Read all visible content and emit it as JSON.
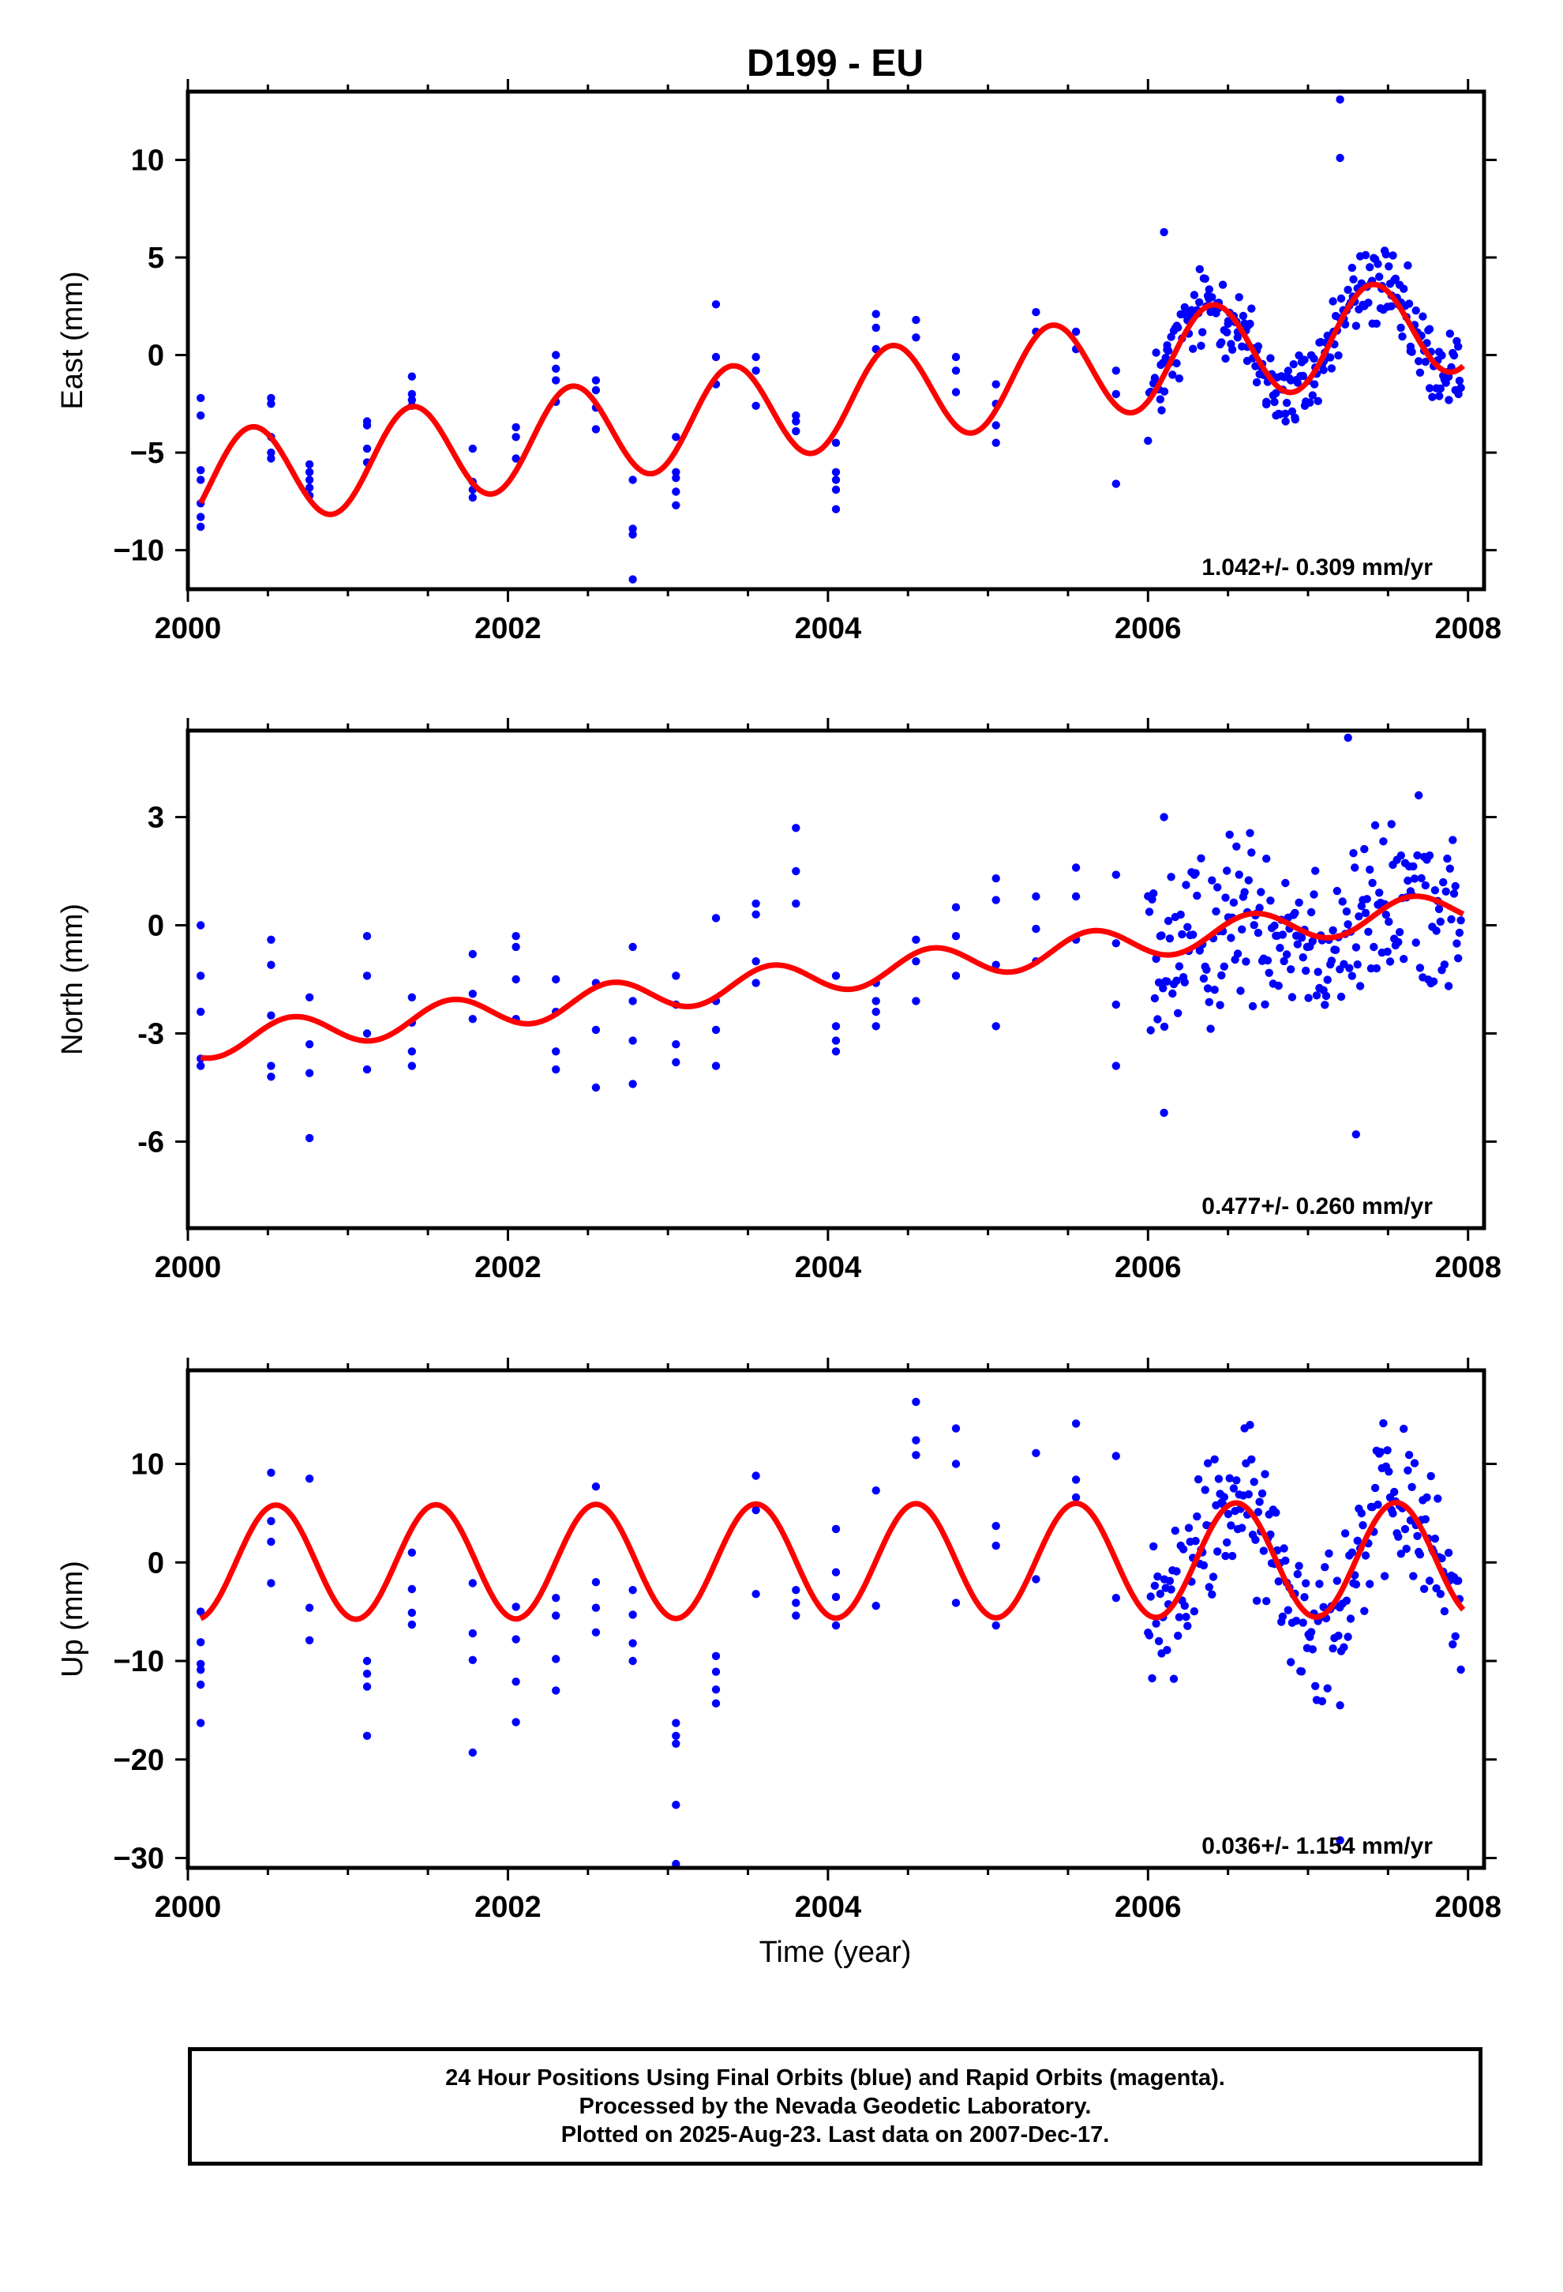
{
  "title": "D199 - EU",
  "xlabel": "Time (year)",
  "x_ticks": [
    2000,
    2002,
    2004,
    2006,
    2008
  ],
  "footer": {
    "line1": "24 Hour Positions Using Final Orbits (blue) and Rapid Orbits (magenta).",
    "line2": "Processed by the Nevada Geodetic Laboratory.",
    "line3": "Plotted on 2025-Aug-23. Last data on 2007-Dec-17."
  },
  "colors": {
    "points": "#0000ff",
    "model": "#ff0000",
    "frame": "#000000"
  },
  "chart_data": [
    {
      "type": "scatter",
      "title": "D199 - EU",
      "ylabel": "East (mm)",
      "xlabel": "",
      "xlim": [
        2000,
        2008.1
      ],
      "ylim": [
        -12,
        13.5
      ],
      "y_ticks": [
        -10,
        -5,
        0,
        5,
        10
      ],
      "y_tick_labels": [
        "−10",
        "−5",
        "0",
        "5",
        "10"
      ],
      "rate_text": "1.042+/- 0.309 mm/yr",
      "trend": {
        "slope": 1.042,
        "intercept_at_2000": -6.6
      },
      "seasonal": {
        "type": "annual",
        "amplitude": 2.5,
        "phase_year": 0.4
      },
      "grid": false,
      "series": [
        {
          "name": "points",
          "x": [
            2000.08,
            2000.08,
            2000.08,
            2000.08,
            2000.08,
            2000.08,
            2000.08,
            2000.52,
            2000.52,
            2000.52,
            2000.52,
            2000.52,
            2000.76,
            2000.76,
            2000.76,
            2000.76,
            2000.76,
            2001.12,
            2001.12,
            2001.12,
            2001.12,
            2001.4,
            2001.4,
            2001.4,
            2001.4,
            2001.78,
            2001.78,
            2001.78,
            2001.78,
            2002.05,
            2002.05,
            2002.05,
            2002.3,
            2002.3,
            2002.3,
            2002.3,
            2002.55,
            2002.55,
            2002.55,
            2002.55,
            2002.78,
            2002.78,
            2002.78,
            2002.78,
            2003.05,
            2003.05,
            2003.05,
            2003.05,
            2003.05,
            2003.3,
            2003.3,
            2003.3,
            2003.55,
            2003.55,
            2003.55,
            2003.8,
            2003.8,
            2003.8,
            2004.05,
            2004.05,
            2004.05,
            2004.05,
            2004.05,
            2004.3,
            2004.3,
            2004.3,
            2004.55,
            2004.55,
            2004.8,
            2004.8,
            2004.8,
            2005.05,
            2005.05,
            2005.05,
            2005.05,
            2005.3,
            2005.3,
            2005.55,
            2005.55,
            2005.8,
            2005.8,
            2005.8,
            2006.08,
            2006.12,
            2006.18,
            2006.25,
            2006.32,
            2006.38,
            2006.44,
            2006.5,
            2006.56,
            2006.62,
            2006.68,
            2006.74,
            2006.8,
            2006.86,
            2006.92,
            2006.98,
            2007.04,
            2007.1,
            2007.16,
            2007.22,
            2007.28,
            2007.34,
            2007.4,
            2007.46,
            2007.52,
            2007.58,
            2007.64,
            2007.7,
            2007.76,
            2007.82,
            2007.88,
            2007.94,
            2007.2,
            2007.2,
            2006.1
          ],
          "y": [
            -2.2,
            -3.1,
            -5.9,
            -6.4,
            -7.6,
            -8.3,
            -8.8,
            -2.2,
            -2.5,
            -4.2,
            -5.0,
            -5.3,
            -5.6,
            -6.0,
            -6.4,
            -6.8,
            -7.2,
            -3.4,
            -3.6,
            -4.8,
            -5.5,
            -1.1,
            -2.0,
            -2.3,
            -2.6,
            -4.8,
            -6.5,
            -6.9,
            -7.3,
            -3.7,
            -4.2,
            -5.3,
            0.0,
            -0.7,
            -1.3,
            -2.4,
            -1.3,
            -1.8,
            -2.7,
            -3.8,
            -6.4,
            -8.9,
            -9.2,
            -11.5,
            -4.2,
            -6.0,
            -6.3,
            -7.0,
            -7.7,
            2.6,
            -0.1,
            -1.5,
            -0.1,
            -0.8,
            -2.6,
            -3.1,
            -3.4,
            -3.9,
            -4.5,
            -6.0,
            -6.4,
            -6.9,
            -7.9,
            2.1,
            1.4,
            0.3,
            1.8,
            0.9,
            -0.1,
            -0.8,
            -1.9,
            -1.5,
            -2.5,
            -3.6,
            -4.5,
            2.2,
            1.2,
            1.2,
            0.3,
            -0.8,
            -2.0,
            -6.6,
            -0.5,
            0.5,
            1.5,
            2.0,
            2.7,
            2.9,
            2.4,
            1.6,
            0.9,
            -0.3,
            -1.4,
            -2.4,
            -3.1,
            -3.4,
            -3.3,
            -2.6,
            -1.5,
            -0.3,
            1.2,
            2.3,
            3.0,
            3.6,
            3.8,
            3.4,
            2.5,
            1.4,
            0.2,
            -0.9,
            -1.7,
            -2.1,
            -2.3,
            -2.0,
            10.1,
            13.1,
            6.3
          ]
        }
      ]
    },
    {
      "type": "scatter",
      "ylabel": "North (mm)",
      "xlabel": "",
      "xlim": [
        2000,
        2008.1
      ],
      "ylim": [
        -8.4,
        5.4
      ],
      "y_ticks": [
        -6,
        -3,
        0,
        3
      ],
      "y_tick_labels": [
        "-6",
        "-3",
        "0",
        "3"
      ],
      "rate_text": "0.477+/- 0.260 mm/yr",
      "trend": {
        "slope": 0.477,
        "intercept_at_2000": -3.3
      },
      "seasonal": {
        "type": "annual",
        "amplitude": 0.45,
        "phase_year": 0.65
      },
      "grid": false,
      "series": [
        {
          "name": "points",
          "x": [
            2000.08,
            2000.08,
            2000.08,
            2000.08,
            2000.08,
            2000.52,
            2000.52,
            2000.52,
            2000.52,
            2000.52,
            2000.76,
            2000.76,
            2000.76,
            2000.76,
            2001.12,
            2001.12,
            2001.12,
            2001.12,
            2001.4,
            2001.4,
            2001.4,
            2001.4,
            2001.78,
            2001.78,
            2001.78,
            2002.05,
            2002.05,
            2002.05,
            2002.05,
            2002.3,
            2002.3,
            2002.3,
            2002.3,
            2002.55,
            2002.55,
            2002.55,
            2002.78,
            2002.78,
            2002.78,
            2002.78,
            2003.05,
            2003.05,
            2003.05,
            2003.05,
            2003.3,
            2003.3,
            2003.3,
            2003.3,
            2003.55,
            2003.55,
            2003.55,
            2003.55,
            2003.8,
            2003.8,
            2003.8,
            2004.05,
            2004.05,
            2004.05,
            2004.05,
            2004.3,
            2004.3,
            2004.3,
            2004.3,
            2004.55,
            2004.55,
            2004.55,
            2004.8,
            2004.8,
            2004.8,
            2005.05,
            2005.05,
            2005.05,
            2005.05,
            2005.3,
            2005.3,
            2005.3,
            2005.55,
            2005.55,
            2005.55,
            2005.8,
            2005.8,
            2005.8,
            2005.8,
            2006.1,
            2006.1,
            2007.3,
            2007.25
          ],
          "y": [
            0.0,
            -1.4,
            -2.4,
            -3.7,
            -3.9,
            -0.4,
            -1.1,
            -2.5,
            -3.9,
            -4.2,
            -2.0,
            -3.3,
            -4.1,
            -5.9,
            -0.3,
            -1.4,
            -3.0,
            -4.0,
            -2.0,
            -2.7,
            -3.5,
            -3.9,
            -0.8,
            -1.9,
            -2.6,
            -0.3,
            -0.6,
            -1.5,
            -2.6,
            -1.5,
            -2.4,
            -3.5,
            -4.0,
            -1.6,
            -2.9,
            -4.5,
            -0.6,
            -2.1,
            -3.2,
            -4.4,
            -1.4,
            -2.2,
            -3.3,
            -3.8,
            0.2,
            -2.1,
            -2.9,
            -3.9,
            0.6,
            0.3,
            -1.0,
            -1.6,
            2.7,
            1.5,
            0.6,
            -1.4,
            -2.8,
            -3.2,
            -3.5,
            -1.6,
            -2.1,
            -2.4,
            -2.8,
            -0.4,
            -1.0,
            -2.1,
            0.5,
            -0.3,
            -1.4,
            1.3,
            0.7,
            -1.1,
            -2.8,
            0.8,
            -0.1,
            -1.0,
            1.6,
            0.8,
            -0.4,
            1.4,
            -0.5,
            -2.2,
            -3.9,
            3.0,
            -5.2,
            -5.8,
            5.2
          ]
        }
      ]
    },
    {
      "type": "scatter",
      "ylabel": "Up (mm)",
      "xlabel": "Time (year)",
      "xlim": [
        2000,
        2008.1
      ],
      "ylim": [
        -31,
        19.5
      ],
      "y_ticks": [
        -30,
        -20,
        -10,
        0,
        10
      ],
      "y_tick_labels": [
        "−30",
        "−20",
        "−10",
        "0",
        "10"
      ],
      "rate_text": "0.036+/- 1.154 mm/yr",
      "trend": {
        "slope": 0.036,
        "intercept_at_2000": 0.0
      },
      "seasonal": {
        "type": "annual",
        "amplitude": 5.8,
        "phase_year": 0.55
      },
      "grid": false,
      "series": [
        {
          "name": "points",
          "x": [
            2000.08,
            2000.08,
            2000.08,
            2000.08,
            2000.08,
            2000.08,
            2000.52,
            2000.52,
            2000.52,
            2000.52,
            2000.76,
            2000.76,
            2000.76,
            2001.12,
            2001.12,
            2001.12,
            2001.12,
            2001.4,
            2001.4,
            2001.4,
            2001.4,
            2001.78,
            2001.78,
            2001.78,
            2001.78,
            2002.05,
            2002.05,
            2002.05,
            2002.05,
            2002.3,
            2002.3,
            2002.3,
            2002.3,
            2002.55,
            2002.55,
            2002.55,
            2002.55,
            2002.78,
            2002.78,
            2002.78,
            2002.78,
            2003.05,
            2003.05,
            2003.05,
            2003.05,
            2003.05,
            2003.3,
            2003.3,
            2003.3,
            2003.3,
            2003.55,
            2003.55,
            2003.55,
            2003.8,
            2003.8,
            2003.8,
            2004.05,
            2004.05,
            2004.05,
            2004.05,
            2004.3,
            2004.3,
            2004.55,
            2004.55,
            2004.55,
            2004.8,
            2004.8,
            2004.8,
            2005.05,
            2005.05,
            2005.05,
            2005.3,
            2005.3,
            2005.55,
            2005.55,
            2005.55,
            2005.8,
            2005.8,
            2007.2,
            2007.2
          ],
          "y": [
            -5.0,
            -8.1,
            -10.3,
            -12.4,
            -16.3,
            -10.9,
            9.1,
            4.2,
            2.1,
            -2.1,
            8.5,
            -4.6,
            -7.9,
            -10.0,
            -11.3,
            -12.6,
            -17.6,
            1.0,
            -2.7,
            -5.1,
            -6.3,
            -2.1,
            -7.2,
            -9.9,
            -19.3,
            -4.5,
            -7.8,
            -12.1,
            -16.2,
            -3.6,
            -5.4,
            -9.8,
            -13.0,
            7.7,
            -2.0,
            -4.6,
            -7.1,
            -2.8,
            -5.3,
            -8.2,
            -10.0,
            -16.3,
            -17.6,
            -18.4,
            -24.6,
            -30.6,
            -9.5,
            -11.1,
            -12.9,
            -14.3,
            8.8,
            5.3,
            -3.2,
            -2.8,
            -4.1,
            -5.4,
            3.4,
            -1.0,
            -3.5,
            -6.4,
            7.3,
            -4.4,
            16.3,
            12.4,
            10.9,
            13.6,
            10.0,
            -4.1,
            3.7,
            1.7,
            -6.4,
            11.1,
            -1.7,
            14.1,
            8.4,
            6.6,
            10.8,
            -3.6,
            -14.5,
            -28.2
          ]
        }
      ]
    }
  ]
}
